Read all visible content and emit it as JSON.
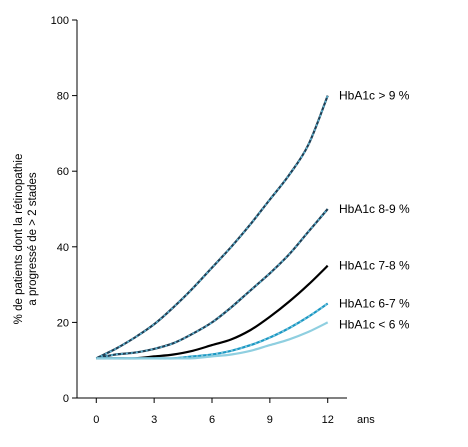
{
  "chart_data": {
    "type": "line",
    "title": "",
    "ylabel_lines": [
      "% de patients dont la rétinopathie",
      "a progressé de > 2 stades"
    ],
    "xlabel": "ans",
    "xlim": [
      -1,
      13
    ],
    "ylim": [
      0,
      100
    ],
    "x_ticks": [
      0,
      3,
      6,
      9,
      12
    ],
    "y_ticks": [
      0,
      20,
      40,
      60,
      80,
      100
    ],
    "grid": false,
    "legend": "inline labels at right end of each line",
    "series": [
      {
        "name": "HbA1c > 9 %",
        "color": "#1f3f55",
        "overlay_color": "#5fb8d6",
        "x": [
          0,
          1,
          2,
          3,
          4,
          5,
          6,
          7,
          8,
          9,
          10,
          11,
          12
        ],
        "y": [
          10.5,
          13,
          16,
          19.5,
          24,
          29,
          34.5,
          40,
          46,
          52.5,
          59,
          67,
          80
        ]
      },
      {
        "name": "HbA1c 8-9 %",
        "color": "#1f3f55",
        "overlay_color": "#5fb8d6",
        "x": [
          0,
          1,
          2,
          3,
          4,
          5,
          6,
          7,
          8,
          9,
          10,
          11,
          12
        ],
        "y": [
          10.5,
          11.5,
          12,
          13,
          14.5,
          17,
          20,
          24,
          28.5,
          33,
          38,
          44,
          50
        ]
      },
      {
        "name": "HbA1c 7-8 %",
        "color": "#000000",
        "x": [
          0,
          1,
          2,
          3,
          4,
          5,
          6,
          7,
          8,
          9,
          10,
          11,
          12
        ],
        "y": [
          10.5,
          10.5,
          10.5,
          11,
          11.5,
          12.5,
          14,
          15.5,
          18,
          21.5,
          25.5,
          30,
          35
        ]
      },
      {
        "name": "HbA1c 6-7 %",
        "color": "#1a98c4",
        "overlay_color": "#7fc6dc",
        "x": [
          0,
          1,
          2,
          3,
          4,
          5,
          6,
          7,
          8,
          9,
          10,
          11,
          12
        ],
        "y": [
          10.5,
          10.5,
          10.5,
          10.5,
          10.5,
          11,
          11.5,
          12.5,
          14,
          16,
          18.5,
          21.5,
          25
        ]
      },
      {
        "name": "HbA1c < 6 %",
        "color": "#8fcfe0",
        "x": [
          0,
          1,
          2,
          3,
          4,
          5,
          6,
          7,
          8,
          9,
          10,
          11,
          12
        ],
        "y": [
          10.5,
          10.5,
          10.5,
          10.5,
          10.5,
          10.5,
          11,
          11.5,
          12.5,
          14,
          15.5,
          17.5,
          20
        ]
      }
    ]
  }
}
